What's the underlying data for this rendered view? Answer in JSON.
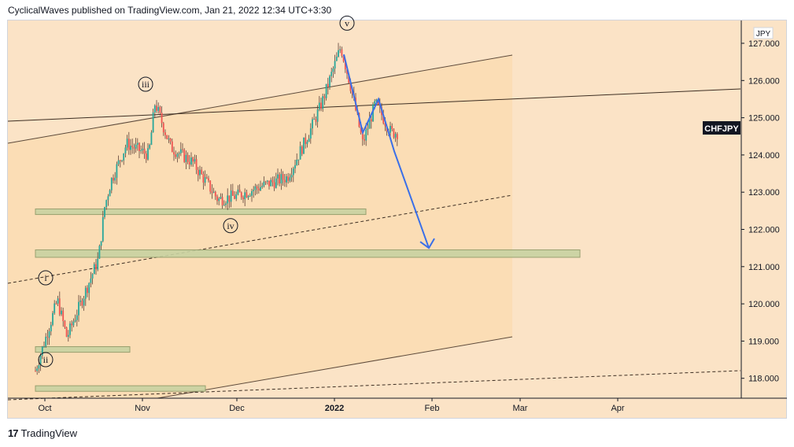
{
  "header": {
    "publisher_line": "CyclicalWaves published on TradingView.com, Jan 21, 2022 12:34 UTC+3:30"
  },
  "footer": {
    "brand": "TradingView",
    "logo_text": "17"
  },
  "chart_data": {
    "type": "candlestick",
    "symbol": "CHFJPY",
    "currency": "JPY",
    "y_ticks": [
      127.0,
      126.0,
      125.0,
      124.0,
      123.0,
      122.0,
      121.0,
      120.0,
      119.0,
      118.0
    ],
    "y_tick_labels": [
      "127.000",
      "126.000",
      "125.000",
      "124.000",
      "123.000",
      "122.000",
      "121.000",
      "120.000",
      "119.000",
      "118.000"
    ],
    "x_ticks": [
      "Oct",
      "Nov",
      "Dec",
      "2022",
      "Feb",
      "Mar",
      "Apr"
    ],
    "ylim": [
      117.5,
      127.5
    ],
    "last_price_label": "CHFJPY",
    "wave_labels": [
      "i",
      "ii",
      "iii",
      "iv",
      "v"
    ],
    "approx_price_path": [
      {
        "date": "Sep 28",
        "price": 118.2
      },
      {
        "date": "Oct 5",
        "price": 120.1
      },
      {
        "date": "Oct 8",
        "price": 119.1
      },
      {
        "date": "Oct 18",
        "price": 121.2
      },
      {
        "date": "Oct 20",
        "price": 122.6
      },
      {
        "date": "Oct 22",
        "price": 123.3
      },
      {
        "date": "Oct 27",
        "price": 124.3
      },
      {
        "date": "Nov 3",
        "price": 124.0
      },
      {
        "date": "Nov 5",
        "price": 125.4
      },
      {
        "date": "Nov 10",
        "price": 124.2
      },
      {
        "date": "Nov 17",
        "price": 123.8
      },
      {
        "date": "Nov 25",
        "price": 122.8
      },
      {
        "date": "Dec 1",
        "price": 122.9
      },
      {
        "date": "Dec 10",
        "price": 123.2
      },
      {
        "date": "Dec 17",
        "price": 123.4
      },
      {
        "date": "Dec 20",
        "price": 123.9
      },
      {
        "date": "Dec 24",
        "price": 124.6
      },
      {
        "date": "Dec 28",
        "price": 125.4
      },
      {
        "date": "Jan 3",
        "price": 126.9
      },
      {
        "date": "Jan 6",
        "price": 125.9
      },
      {
        "date": "Jan 10",
        "price": 124.3
      },
      {
        "date": "Jan 14",
        "price": 125.4
      },
      {
        "date": "Jan 19",
        "price": 124.6
      },
      {
        "date": "Jan 21",
        "price": 124.6
      }
    ],
    "projection_path": [
      {
        "date": "Jan 4",
        "price": 126.7
      },
      {
        "date": "Jan 10",
        "price": 124.6
      },
      {
        "date": "Jan 15",
        "price": 125.5
      },
      {
        "date": "Jan 20",
        "price": 124.1
      },
      {
        "date": "Jan 31",
        "price": 121.5
      }
    ],
    "zones": [
      {
        "price_low": 122.4,
        "price_high": 122.55,
        "from": "Sep 28",
        "to": "Jan 11"
      },
      {
        "price_low": 121.25,
        "price_high": 121.45,
        "from": "Sep 28",
        "to": "Mar 20"
      },
      {
        "price_low": 118.7,
        "price_high": 118.85,
        "from": "Sep 28",
        "to": "Oct 28"
      },
      {
        "price_low": 117.65,
        "price_high": 117.8,
        "from": "Sep 28",
        "to": "Nov 21"
      }
    ],
    "colors": {
      "up": "#26a69a",
      "down": "#ef5350",
      "candle_wick": "#5d4037",
      "projection": "#3a6fe8",
      "zone_fill": "#c9d3a2",
      "zone_stroke": "#8f9a68",
      "channel_fill": "#fcd8a8",
      "background": "#fbe3c6"
    },
    "grid": false,
    "legend": "none"
  }
}
